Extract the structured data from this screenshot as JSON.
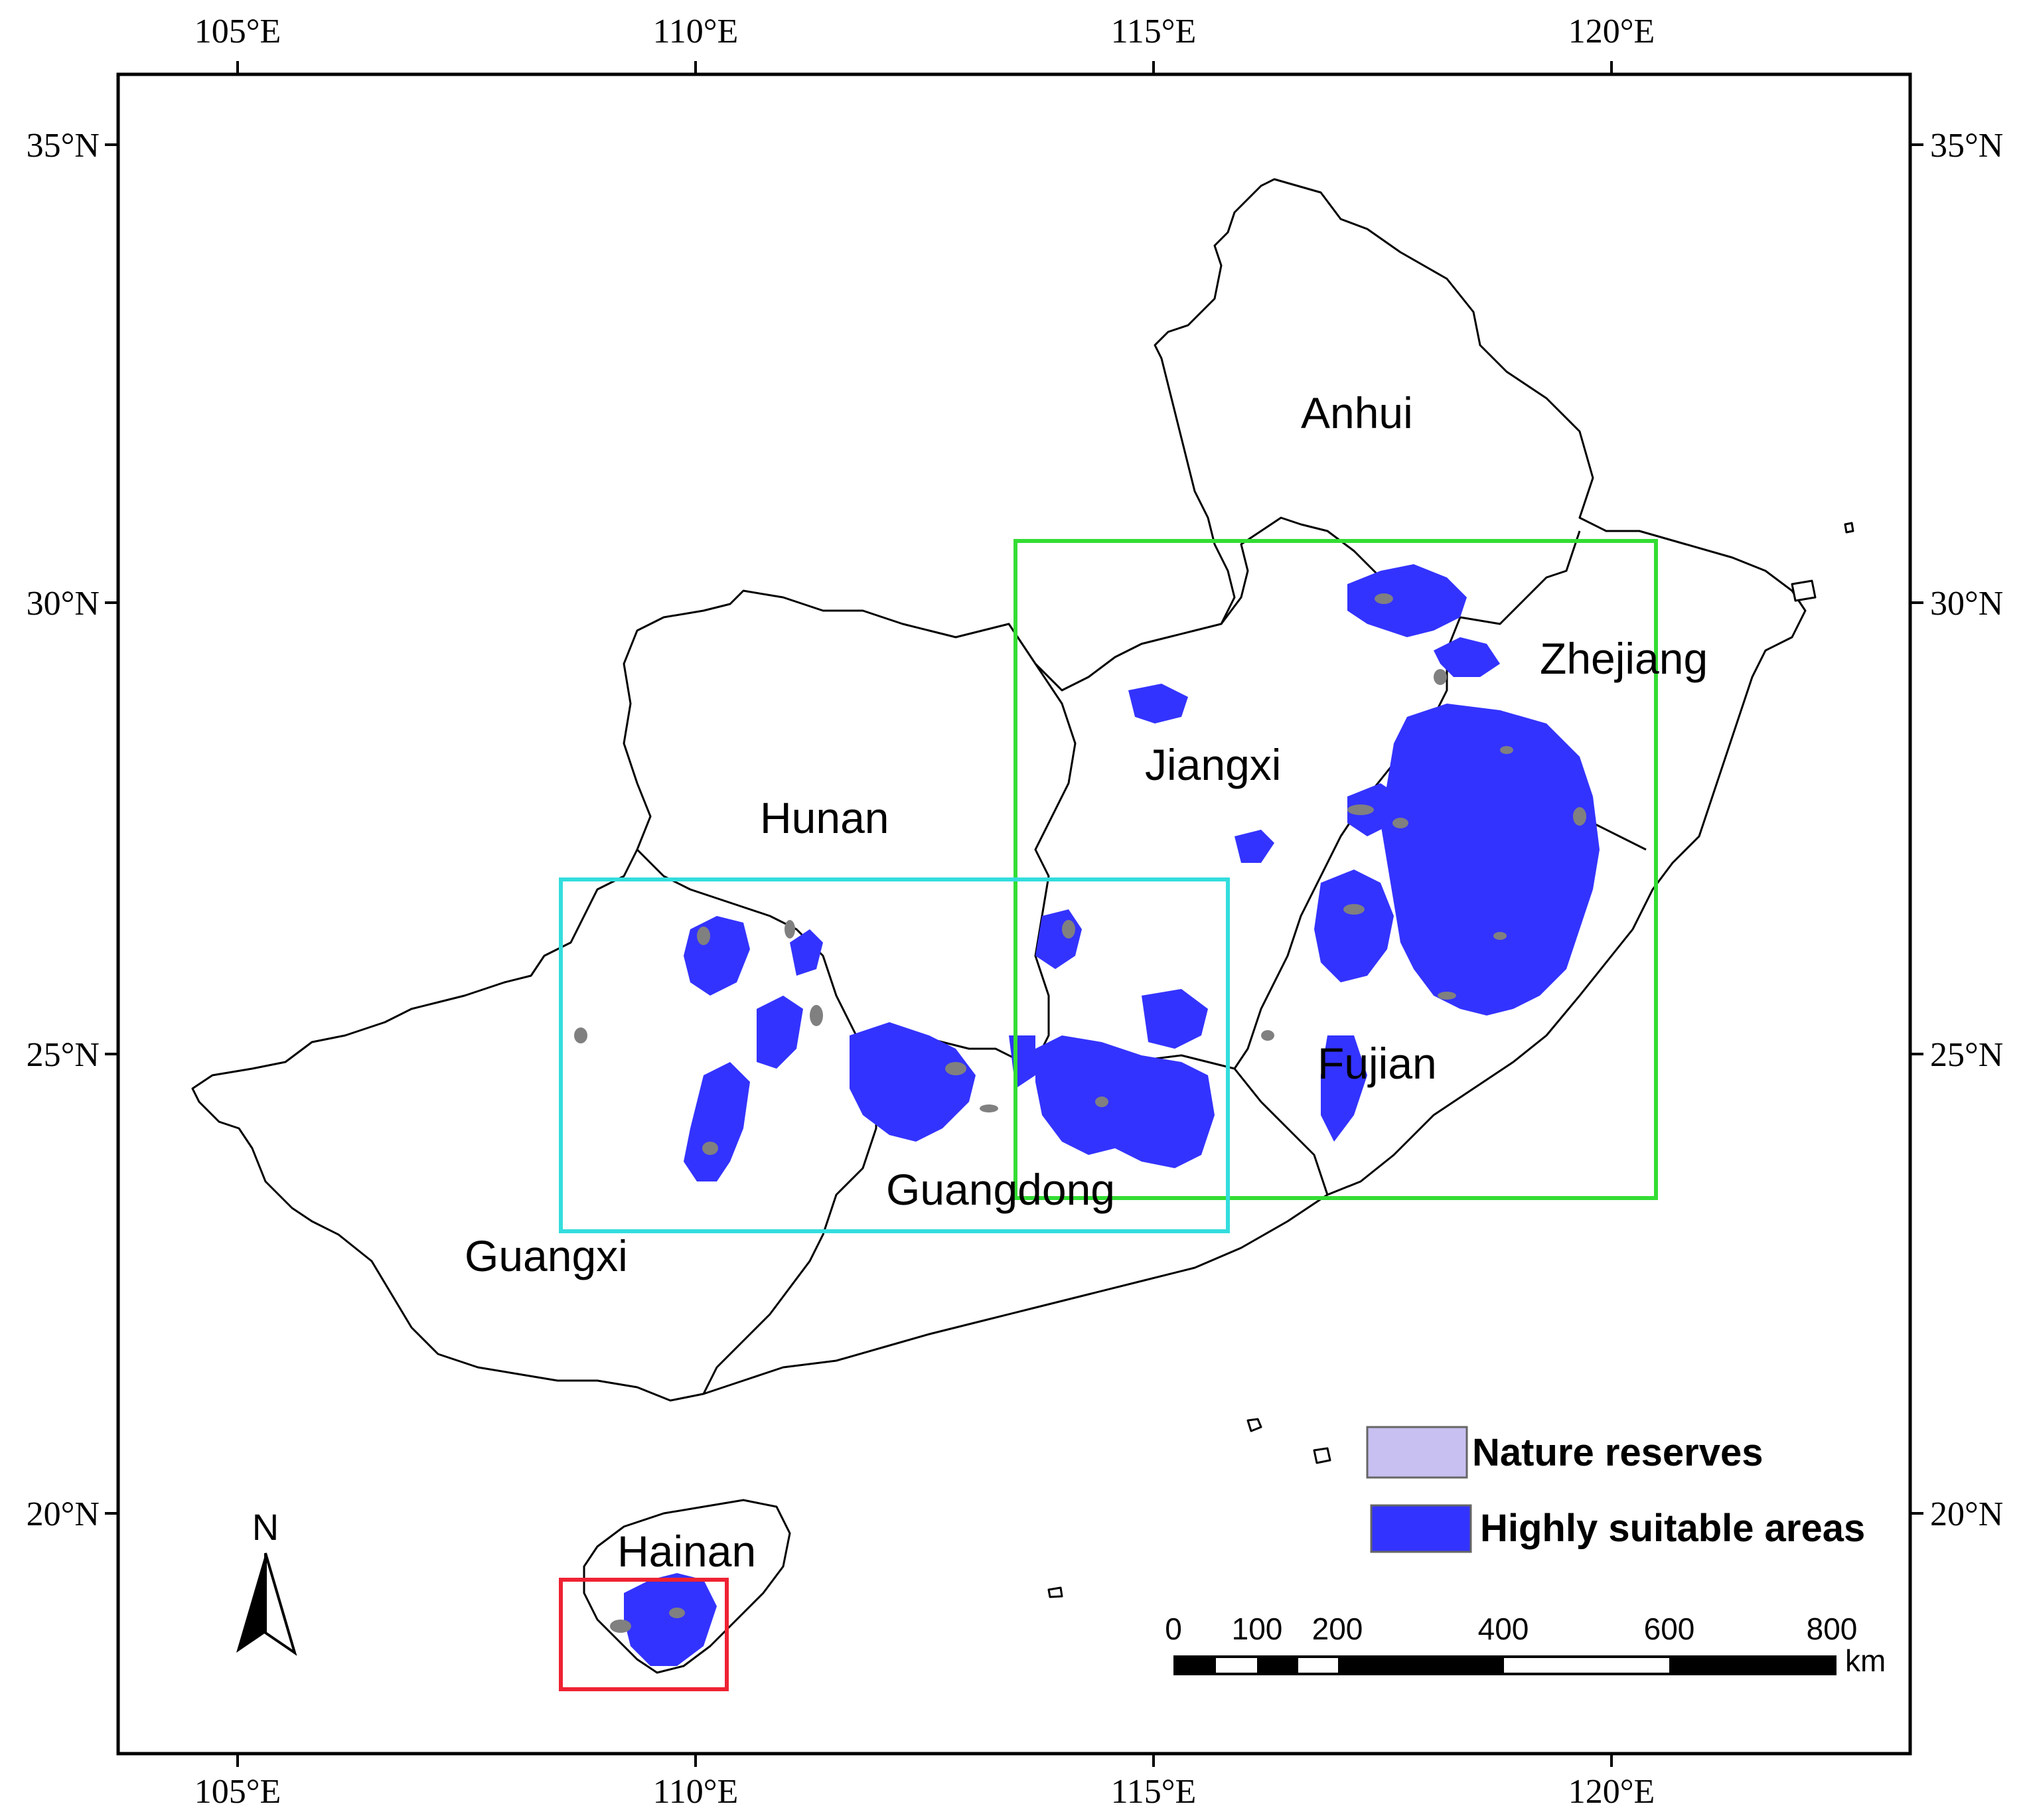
{
  "map": {
    "longitude_ticks": [
      "105°E",
      "110°E",
      "115°E",
      "120°E"
    ],
    "latitude_ticks": [
      "35°N",
      "30°N",
      "25°N",
      "20°N"
    ],
    "regions": [
      "Anhui",
      "Zhejiang",
      "Jiangxi",
      "Hunan",
      "Fujian",
      "Guangdong",
      "Guangxi",
      "Hainan"
    ],
    "legend": {
      "nature_reserves": "Nature reserves",
      "highly_suitable": "Highly suitable areas"
    },
    "scale_bar": {
      "labels": [
        "0",
        "100",
        "200",
        "400",
        "600",
        "800"
      ],
      "unit": "km"
    },
    "north_arrow_label": "N",
    "colors": {
      "highly_suitable": "#3333ff",
      "nature_reserves": "#c8c0f0",
      "reserve_marks": "#808080",
      "box_green": "#33dd33",
      "box_cyan": "#33dddd",
      "box_red": "#ee2233"
    }
  }
}
